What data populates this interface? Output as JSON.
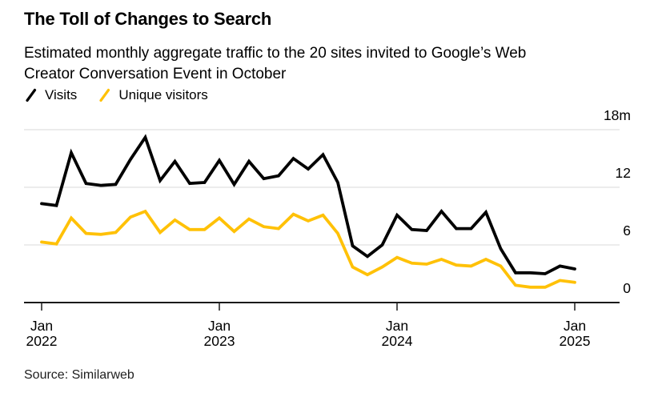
{
  "header": {
    "title": "The Toll of Changes to Search",
    "subtitle_lines": [
      "Estimated monthly aggregate traffic to the 20 sites invited to Google’s Web",
      "Creator Conversation Event in October"
    ]
  },
  "legend": {
    "items": [
      {
        "label": "Visits",
        "color": "#000000"
      },
      {
        "label": "Unique visitors",
        "color": "#FFC107"
      }
    ]
  },
  "chart_data": {
    "type": "line",
    "unit": "millions of visits per month",
    "x": [
      "Jan 2022",
      "Feb 2022",
      "Mar 2022",
      "Apr 2022",
      "May 2022",
      "Jun 2022",
      "Jul 2022",
      "Aug 2022",
      "Sep 2022",
      "Oct 2022",
      "Nov 2022",
      "Dec 2022",
      "Jan 2023",
      "Feb 2023",
      "Mar 2023",
      "Apr 2023",
      "May 2023",
      "Jun 2023",
      "Jul 2023",
      "Aug 2023",
      "Sep 2023",
      "Oct 2023",
      "Nov 2023",
      "Dec 2023",
      "Jan 2024",
      "Feb 2024",
      "Mar 2024",
      "Apr 2024",
      "May 2024",
      "Jun 2024",
      "Jul 2024",
      "Aug 2024",
      "Sep 2024",
      "Oct 2024",
      "Nov 2024",
      "Dec 2024",
      "Jan 2025"
    ],
    "series": [
      {
        "name": "Visits",
        "color": "#000000",
        "values": [
          10.3,
          10.1,
          15.6,
          12.4,
          12.2,
          12.3,
          14.9,
          17.2,
          12.7,
          14.7,
          12.4,
          12.5,
          14.8,
          12.3,
          14.7,
          12.9,
          13.2,
          15.0,
          13.9,
          15.4,
          12.5,
          5.9,
          4.8,
          6.0,
          9.1,
          7.6,
          7.5,
          9.5,
          7.7,
          7.7,
          9.4,
          5.6,
          3.1,
          3.1,
          3.0,
          3.8,
          3.5
        ]
      },
      {
        "name": "Unique visitors",
        "color": "#FFC107",
        "values": [
          6.3,
          6.1,
          8.8,
          7.2,
          7.1,
          7.3,
          8.9,
          9.5,
          7.3,
          8.6,
          7.6,
          7.6,
          8.8,
          7.4,
          8.7,
          7.9,
          7.7,
          9.2,
          8.5,
          9.1,
          7.2,
          3.7,
          2.9,
          3.7,
          4.7,
          4.1,
          4.0,
          4.5,
          3.9,
          3.8,
          4.5,
          3.8,
          1.8,
          1.6,
          1.6,
          2.3,
          2.1
        ]
      }
    ],
    "ylim": [
      0,
      18
    ],
    "yticks": [
      {
        "value": 0,
        "label": "0"
      },
      {
        "value": 6,
        "label": "6"
      },
      {
        "value": 12,
        "label": "12"
      },
      {
        "value": 18,
        "label": "18m"
      }
    ],
    "xticks": [
      {
        "month_index": 0,
        "line1": "Jan",
        "line2": "2022"
      },
      {
        "month_index": 12,
        "line1": "Jan",
        "line2": "2023"
      },
      {
        "month_index": 24,
        "line1": "Jan",
        "line2": "2024"
      },
      {
        "month_index": 36,
        "line1": "Jan",
        "line2": "2025"
      }
    ],
    "grid": "horizontal",
    "legend_position": "top-left",
    "axis_label_side": "right"
  },
  "footer": {
    "source": "Source: Similarweb"
  },
  "colors": {
    "background": "#ffffff",
    "gridline": "#d9d9d9",
    "axis": "#1a1a1a",
    "visits_line": "#000000",
    "unique_visitors_line": "#FFC107"
  }
}
